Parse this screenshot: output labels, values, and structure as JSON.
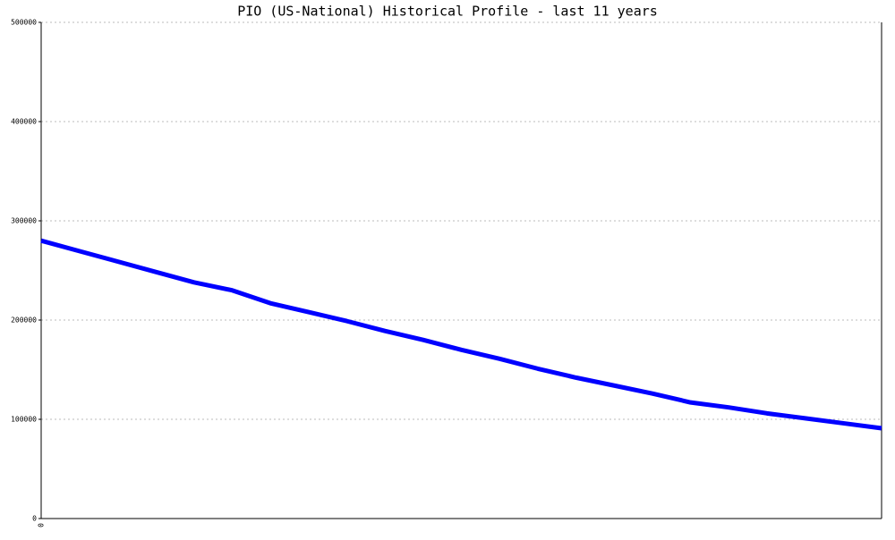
{
  "chart_data": {
    "type": "line",
    "title": "PIO (US-National) Historical Profile - last 11 years",
    "categories": [
      "0",
      null,
      null,
      null,
      null,
      null,
      null,
      null,
      null,
      null,
      null,
      null,
      null,
      null,
      null,
      null,
      null,
      null,
      null,
      null,
      null,
      null,
      null
    ],
    "series": [
      {
        "color": "#0000ff",
        "values": [
          280000,
          269500,
          259000,
          248500,
          238000,
          230000,
          217000,
          208000,
          199000,
          189000,
          180000,
          170000,
          161000,
          151000,
          142000,
          134000,
          126000,
          117000,
          112000,
          106000,
          101000,
          96000,
          91000
        ]
      }
    ],
    "ylim": [
      0,
      500000
    ],
    "yticks": [
      0,
      100000,
      200000,
      300000,
      400000,
      500000
    ],
    "grid": true
  }
}
